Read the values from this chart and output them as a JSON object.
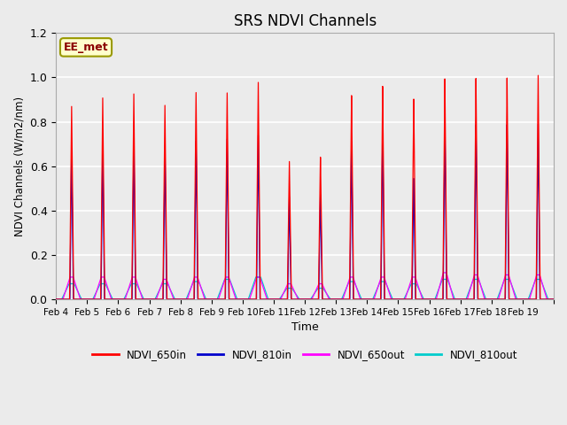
{
  "title": "SRS NDVI Channels",
  "xlabel": "Time",
  "ylabel": "NDVI Channels (W/m2/nm)",
  "ylim": [
    0.0,
    1.2
  ],
  "yticks": [
    0.0,
    0.2,
    0.4,
    0.6,
    0.8,
    1.0,
    1.2
  ],
  "plot_bg_color": "#ebebeb",
  "grid_color": "white",
  "colors": {
    "NDVI_650in": "#ff0000",
    "NDVI_810in": "#0000cc",
    "NDVI_650out": "#ff00ff",
    "NDVI_810out": "#00cccc"
  },
  "annotation_text": "EE_met",
  "annotation_color": "#8b0000",
  "annotation_bg": "#ffffcc",
  "annotation_border": "#999900",
  "legend_labels": [
    "NDVI_650in",
    "NDVI_810in",
    "NDVI_650out",
    "NDVI_810out"
  ],
  "xtick_labels": [
    "Feb 4",
    "Feb 5",
    "Feb 6",
    "Feb 7",
    "Feb 8",
    "Feb 9",
    "Feb 10",
    "Feb 11",
    "Feb 12",
    "Feb 13",
    "Feb 14",
    "Feb 15",
    "Feb 16",
    "Feb 17",
    "Feb 18",
    "Feb 19"
  ],
  "peaks_650in": [
    0.87,
    0.91,
    0.93,
    0.88,
    0.94,
    0.94,
    0.99,
    0.63,
    0.65,
    0.93,
    0.97,
    0.91,
    1.0,
    1.0,
    1.0,
    1.01
  ],
  "peaks_810in": [
    0.67,
    0.7,
    0.72,
    0.69,
    0.72,
    0.73,
    0.75,
    0.47,
    0.48,
    0.72,
    0.77,
    0.55,
    0.8,
    0.79,
    0.79,
    0.79
  ],
  "peaks_650out": [
    0.1,
    0.1,
    0.1,
    0.09,
    0.1,
    0.1,
    0.1,
    0.07,
    0.07,
    0.1,
    0.1,
    0.1,
    0.12,
    0.11,
    0.11,
    0.11
  ],
  "peaks_810out": [
    0.07,
    0.07,
    0.07,
    0.07,
    0.08,
    0.09,
    0.1,
    0.05,
    0.05,
    0.08,
    0.08,
    0.07,
    0.09,
    0.09,
    0.09,
    0.09
  ]
}
